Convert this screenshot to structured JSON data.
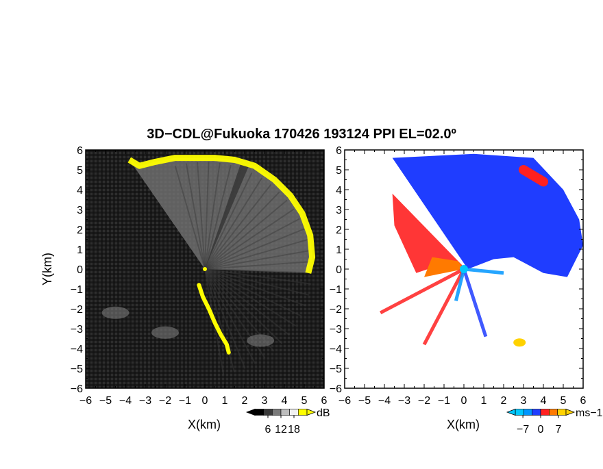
{
  "title": "3D−CDL@Fukuoka 170426 193124 PPI EL=02.0º",
  "chart_data": [
    {
      "type": "heatmap",
      "variable": "reflectivity",
      "xlabel": "X(km)",
      "ylabel": "Y(km)",
      "xlim": [
        -6,
        6
      ],
      "ylim": [
        -6,
        6
      ],
      "xticks": [
        "−6",
        "−5",
        "−4",
        "−3",
        "−2",
        "−1",
        "0",
        "1",
        "2",
        "3",
        "4",
        "5",
        "6"
      ],
      "yticks": [
        "−6",
        "−5",
        "−4",
        "−3",
        "−2",
        "−1",
        "0",
        "1",
        "2",
        "3",
        "4",
        "5",
        "6"
      ],
      "colorbar": {
        "unit": "dB",
        "ticks": [
          "6",
          "12",
          "18"
        ],
        "range": [
          0,
          24
        ],
        "colors": [
          "#000000",
          "#3a3a3a",
          "#7a7a7a",
          "#bdbdbd",
          "#f0f0f0",
          "#ffff00"
        ]
      },
      "echo_rim_north": [
        [
          -3.8,
          5.5
        ],
        [
          -3.3,
          5.2
        ],
        [
          -2.5,
          5.4
        ],
        [
          -1.5,
          5.6
        ],
        [
          -0.5,
          5.6
        ],
        [
          0.5,
          5.6
        ],
        [
          1.5,
          5.5
        ],
        [
          2.5,
          5.2
        ],
        [
          3.5,
          4.5
        ],
        [
          4.3,
          3.7
        ],
        [
          4.9,
          2.8
        ],
        [
          5.3,
          1.7
        ],
        [
          5.4,
          0.6
        ],
        [
          5.2,
          -0.2
        ]
      ],
      "yellow_band_south": [
        [
          -0.3,
          -0.8
        ],
        [
          -0.1,
          -1.4
        ],
        [
          0.2,
          -2.0
        ],
        [
          0.5,
          -2.7
        ],
        [
          0.8,
          -3.3
        ],
        [
          1.1,
          -3.8
        ],
        [
          1.2,
          -4.2
        ]
      ],
      "weak_echoes": [
        [
          -2.0,
          -3.2
        ],
        [
          -4.5,
          -2.2
        ],
        [
          2.8,
          -3.6
        ]
      ]
    },
    {
      "type": "heatmap",
      "variable": "doppler_velocity",
      "xlabel": "X(km)",
      "xlim": [
        -6,
        6
      ],
      "ylim": [
        -6,
        6
      ],
      "xticks": [
        "−6",
        "−5",
        "−4",
        "−3",
        "−2",
        "−1",
        "0",
        "1",
        "2",
        "3",
        "4",
        "5",
        "6"
      ],
      "yticks": [
        "−6",
        "−5",
        "−4",
        "−3",
        "−2",
        "−1",
        "0",
        "1",
        "2",
        "3",
        "4",
        "5",
        "6"
      ],
      "colorbar": {
        "unit": "ms−1",
        "ticks": [
          "−7",
          "0",
          "7"
        ],
        "range": [
          -10,
          10
        ],
        "colors": [
          "#00c8ff",
          "#0096ff",
          "#1f3dff",
          "#ff2020",
          "#ff7a00",
          "#ffd200"
        ]
      },
      "inbound_region": [
        [
          -3.6,
          5.6
        ],
        [
          0.5,
          5.8
        ],
        [
          3.5,
          5.6
        ],
        [
          5.0,
          4.0
        ],
        [
          5.8,
          2.5
        ],
        [
          6.0,
          1.2
        ],
        [
          5.2,
          -0.4
        ],
        [
          4.0,
          -0.2
        ],
        [
          2.5,
          0.6
        ],
        [
          1.5,
          0.5
        ],
        [
          0.2,
          0.0
        ]
      ],
      "outbound_region": [
        [
          -1.2,
          0.2
        ],
        [
          -2.4,
          -0.2
        ],
        [
          -3.5,
          2.2
        ],
        [
          -3.6,
          3.8
        ],
        [
          0.1,
          0.0
        ]
      ],
      "receding_spot": [
        [
          3.0,
          5.0
        ],
        [
          4.0,
          4.4
        ]
      ],
      "radar_site": [
        0,
        0
      ]
    }
  ]
}
